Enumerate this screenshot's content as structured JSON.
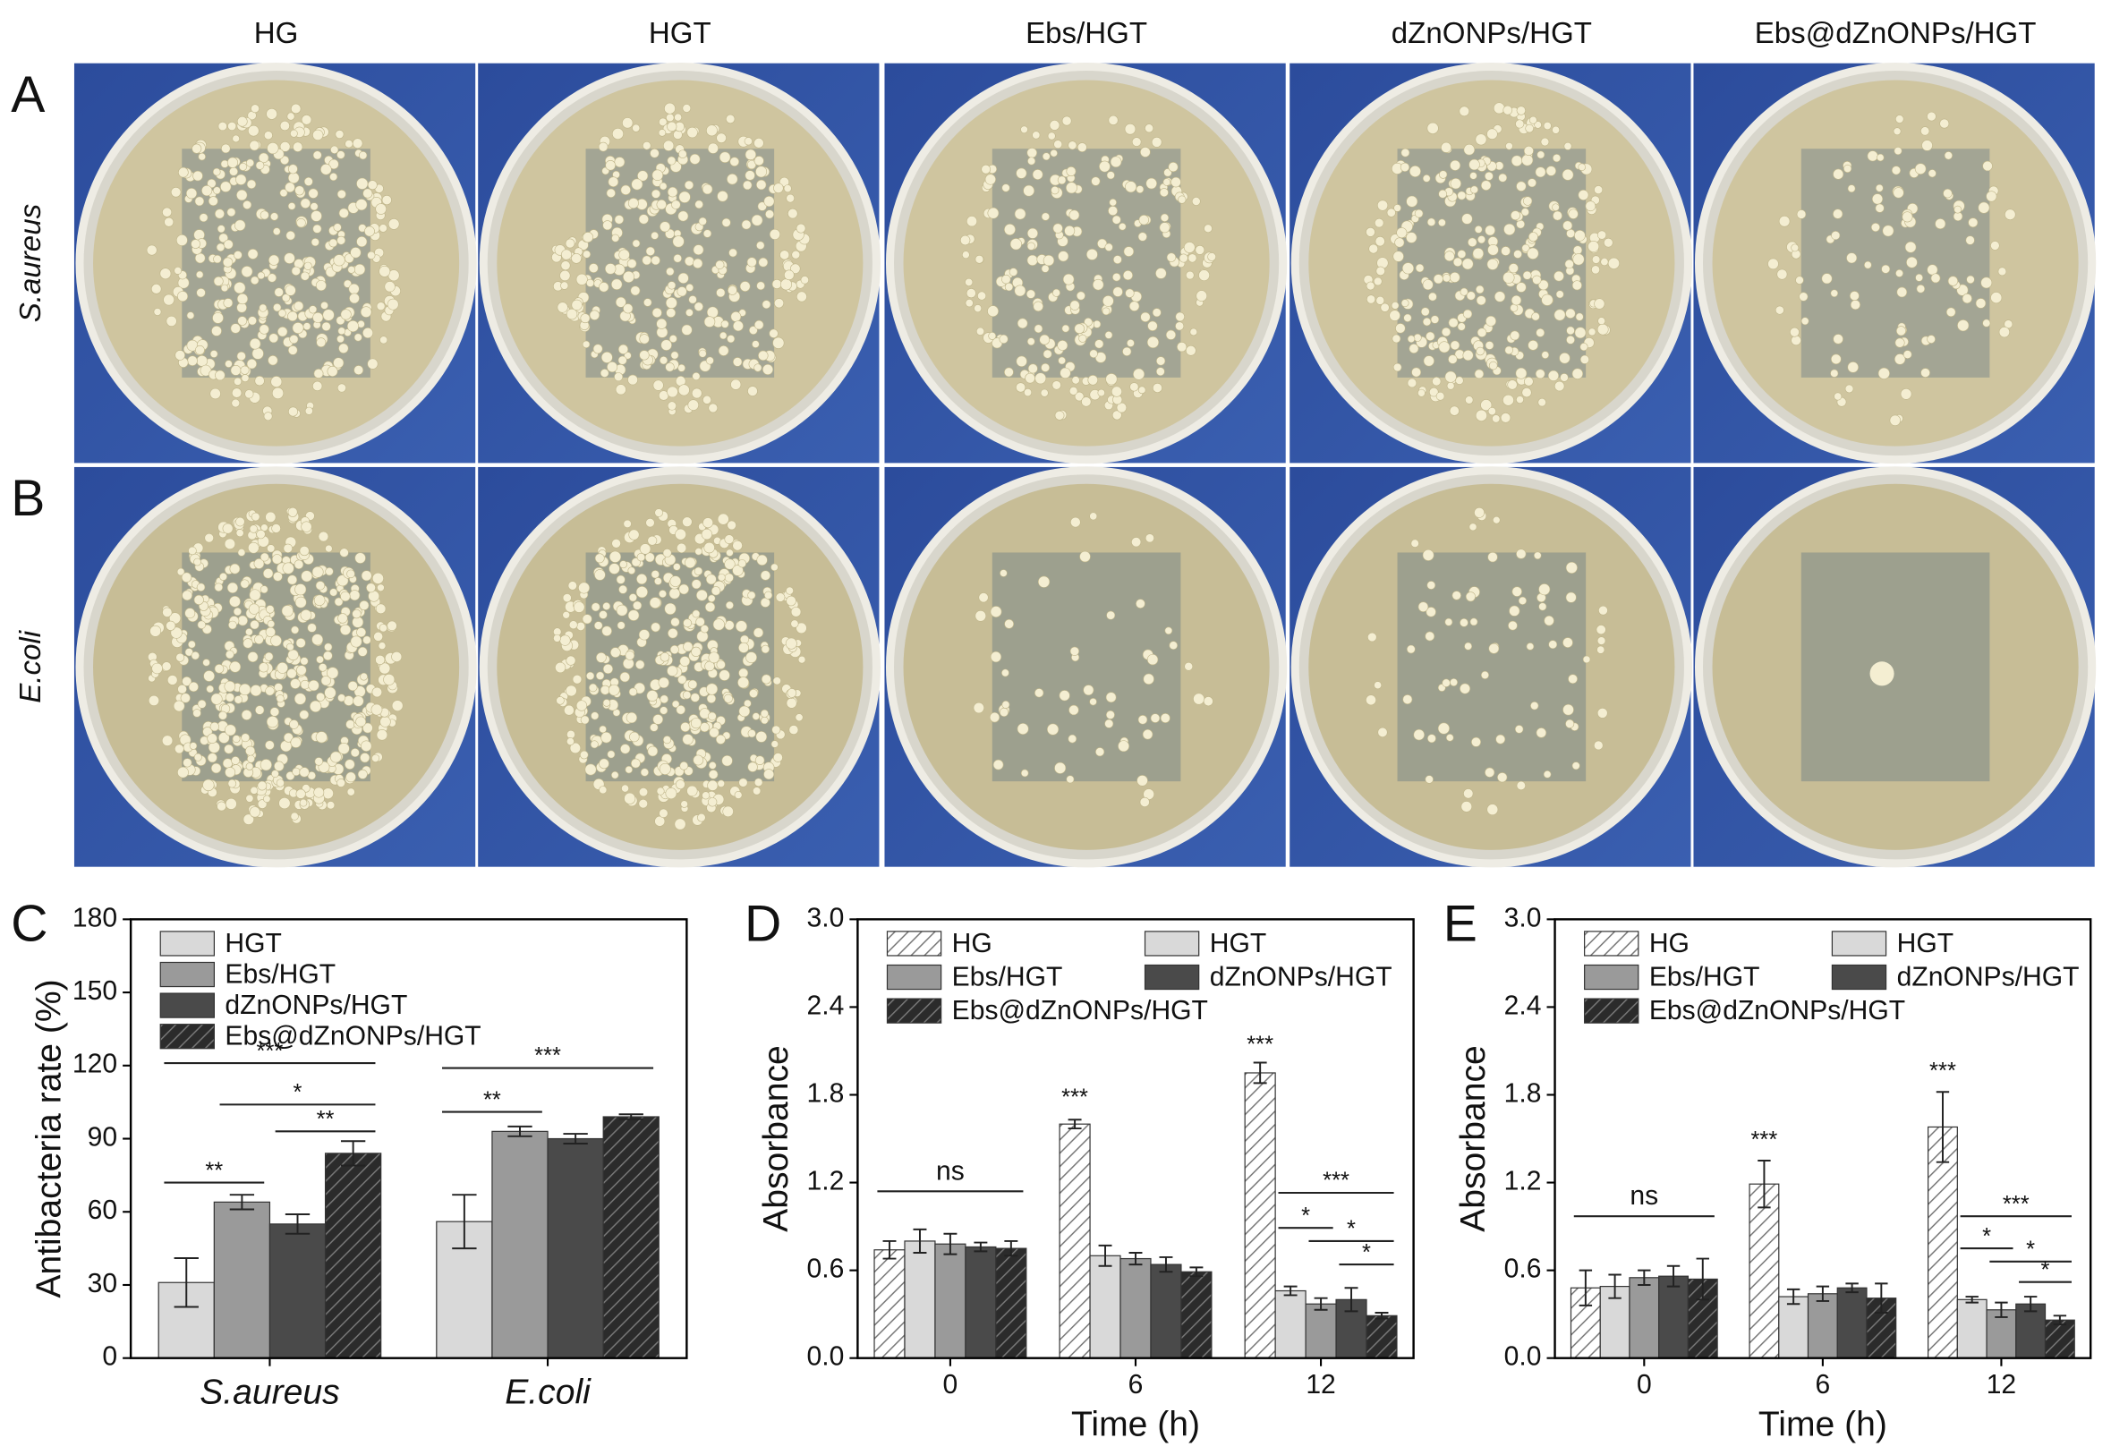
{
  "photo_panels": {
    "columns": [
      "HG",
      "HGT",
      "Ebs/HGT",
      "dZnONPs/HGT",
      "Ebs@dZnONPs/HGT"
    ],
    "rows": [
      "S.aureus",
      "E.coli"
    ],
    "letters": [
      "A",
      "B"
    ]
  },
  "chart_data": [
    {
      "type": "bar",
      "panel_label": "C",
      "ylabel": "Antibacteria rate (%)",
      "category_style": "italic",
      "categories": [
        "S.aureus",
        "E.coli"
      ],
      "series": [
        {
          "name": "HGT",
          "color": "#d9d9d9",
          "hatch": false,
          "values": [
            31,
            56
          ],
          "errors": [
            10,
            11
          ]
        },
        {
          "name": "Ebs/HGT",
          "color": "#9a9a9a",
          "hatch": false,
          "values": [
            64,
            93
          ],
          "errors": [
            3,
            2
          ]
        },
        {
          "name": "dZnONPs/HGT",
          "color": "#4a4a4a",
          "hatch": false,
          "values": [
            55,
            90
          ],
          "errors": [
            4,
            2
          ]
        },
        {
          "name": "Ebs@dZnONPs/HGT",
          "color": "#2b2b2b",
          "hatch": true,
          "values": [
            84,
            99
          ],
          "errors": [
            5,
            1
          ]
        }
      ],
      "ylim": [
        0,
        180
      ],
      "yticks": [
        0,
        30,
        60,
        90,
        120,
        150,
        180
      ],
      "legend": "upper left",
      "legend_columns": 1,
      "annotations": [
        "**",
        "***",
        "*",
        "**",
        "**",
        "***"
      ]
    },
    {
      "type": "bar",
      "panel_label": "D",
      "ylabel": "Absorbance",
      "xlabel": "Time (h)",
      "category_style": "normal",
      "categories": [
        "0",
        "6",
        "12"
      ],
      "series": [
        {
          "name": "HG",
          "color": "#ffffff",
          "hatch": true,
          "values": [
            0.74,
            1.6,
            1.95
          ],
          "errors": [
            0.06,
            0.03,
            0.07
          ]
        },
        {
          "name": "HGT",
          "color": "#d9d9d9",
          "hatch": false,
          "values": [
            0.8,
            0.7,
            0.46
          ],
          "errors": [
            0.08,
            0.07,
            0.03
          ]
        },
        {
          "name": "Ebs/HGT",
          "color": "#9a9a9a",
          "hatch": false,
          "values": [
            0.78,
            0.68,
            0.37
          ],
          "errors": [
            0.07,
            0.04,
            0.04
          ]
        },
        {
          "name": "dZnONPs/HGT",
          "color": "#4a4a4a",
          "hatch": false,
          "values": [
            0.76,
            0.64,
            0.4
          ],
          "errors": [
            0.03,
            0.05,
            0.08
          ]
        },
        {
          "name": "Ebs@dZnONPs/HGT",
          "color": "#2b2b2b",
          "hatch": true,
          "values": [
            0.75,
            0.59,
            0.29
          ],
          "errors": [
            0.05,
            0.03,
            0.02
          ]
        }
      ],
      "ylim": [
        0,
        3
      ],
      "yticks": [
        {
          "value": 0,
          "label": "0.0"
        },
        0.6,
        1.2,
        1.8,
        2.4,
        {
          "value": 3,
          "label": "3.0"
        }
      ],
      "legend": "upper left",
      "legend_columns": 2,
      "annotations": [
        "ns",
        "***",
        "***",
        "***",
        "*",
        "*",
        "*"
      ]
    },
    {
      "type": "bar",
      "panel_label": "E",
      "ylabel": "Absorbance",
      "xlabel": "Time (h)",
      "category_style": "normal",
      "categories": [
        "0",
        "6",
        "12"
      ],
      "series": [
        {
          "name": "HG",
          "color": "#ffffff",
          "hatch": true,
          "values": [
            0.48,
            1.19,
            1.58
          ],
          "errors": [
            0.12,
            0.16,
            0.24
          ]
        },
        {
          "name": "HGT",
          "color": "#d9d9d9",
          "hatch": false,
          "values": [
            0.49,
            0.42,
            0.4
          ],
          "errors": [
            0.08,
            0.05,
            0.02
          ]
        },
        {
          "name": "Ebs/HGT",
          "color": "#9a9a9a",
          "hatch": false,
          "values": [
            0.55,
            0.44,
            0.33
          ],
          "errors": [
            0.05,
            0.05,
            0.05
          ]
        },
        {
          "name": "dZnONPs/HGT",
          "color": "#4a4a4a",
          "hatch": false,
          "values": [
            0.56,
            0.48,
            0.37
          ],
          "errors": [
            0.07,
            0.03,
            0.05
          ]
        },
        {
          "name": "Ebs@dZnONPs/HGT",
          "color": "#2b2b2b",
          "hatch": true,
          "values": [
            0.54,
            0.41,
            0.26
          ],
          "errors": [
            0.14,
            0.1,
            0.03
          ]
        }
      ],
      "ylim": [
        0,
        3
      ],
      "yticks": [
        {
          "value": 0,
          "label": "0.0"
        },
        0.6,
        1.2,
        1.8,
        2.4,
        {
          "value": 3,
          "label": "3.0"
        }
      ],
      "legend": "upper left",
      "legend_columns": 2,
      "annotations": [
        "ns",
        "***",
        "***",
        "***",
        "*",
        "*",
        "*"
      ]
    }
  ]
}
